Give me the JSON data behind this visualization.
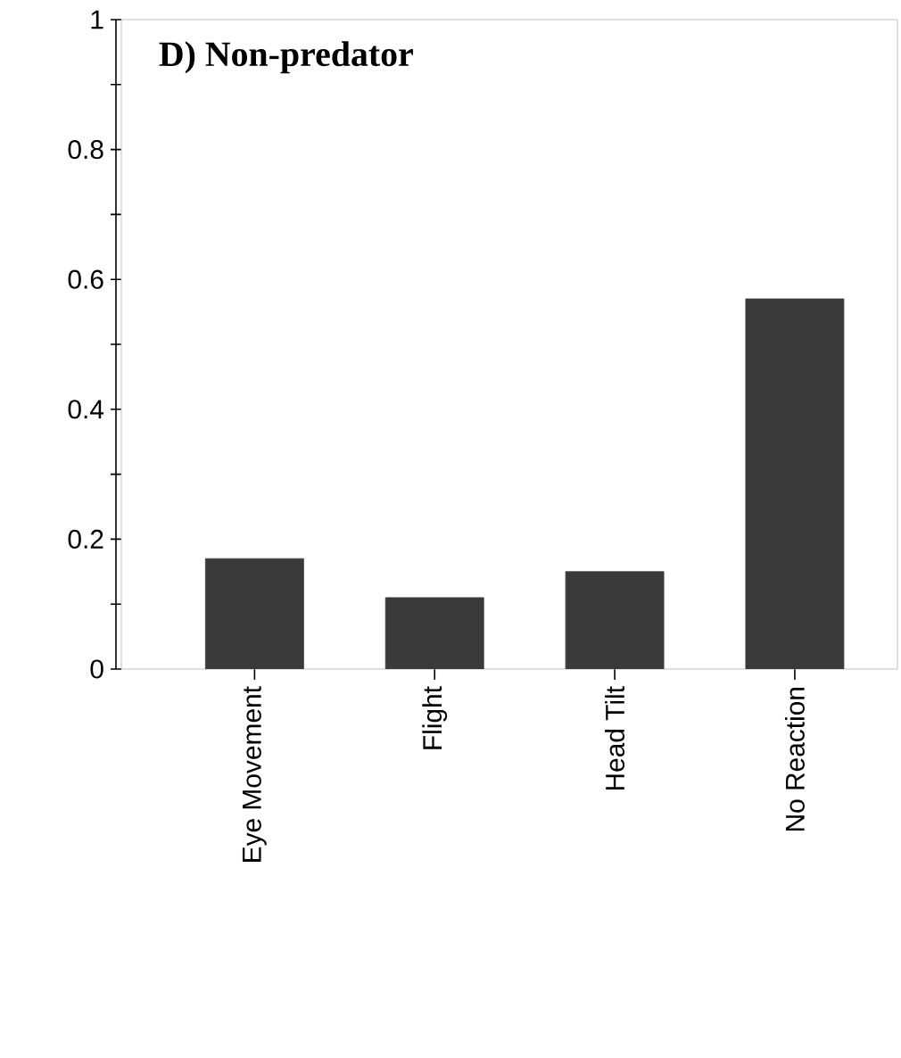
{
  "chart_data": {
    "type": "bar",
    "title": "D) Non-predator",
    "categories": [
      "Eye Movement",
      "Flight",
      "Head Tilt",
      "No Reaction"
    ],
    "values": [
      0.17,
      0.11,
      0.15,
      0.57
    ],
    "color": "#3a3a3a",
    "ylim": [
      0,
      1
    ],
    "yticks": [
      0,
      {
        "value": 0.1,
        "label": null
      },
      0.2,
      {
        "value": 0.3,
        "label": null
      },
      0.4,
      {
        "value": 0.5,
        "label": null
      },
      0.6,
      {
        "value": 0.7,
        "label": null
      },
      0.8,
      {
        "value": 0.9,
        "label": null
      },
      1
    ],
    "grid": false
  }
}
